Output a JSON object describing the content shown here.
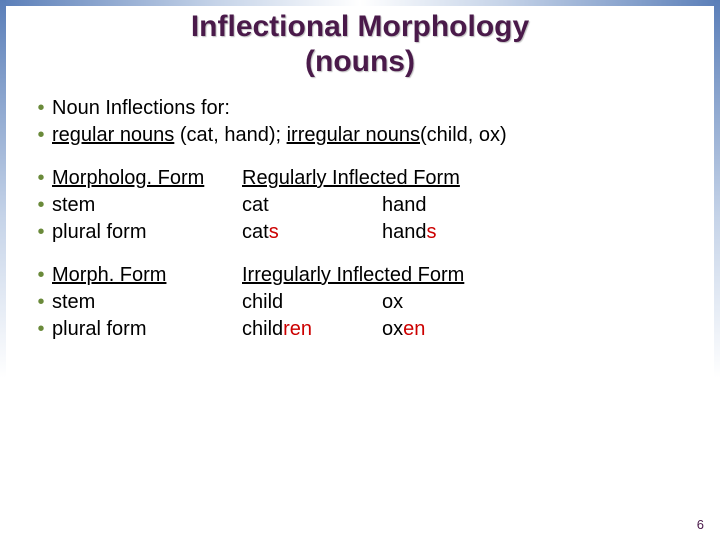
{
  "title": {
    "line1": "Inflectional Morphology",
    "line2": "(nouns)",
    "color": "#4a1a4a",
    "fontsize": 30
  },
  "bullet": {
    "glyph": "•",
    "color": "#6a8a3a",
    "fontsize": 20
  },
  "body": {
    "color": "#000000",
    "fontsize": 20
  },
  "suffix": {
    "color": "#cc0000"
  },
  "section1": {
    "line1": "Noun Inflections for:",
    "line2_a": "regular nouns",
    "line2_b": " (cat, hand);   ",
    "line2_c": "irregular nouns",
    "line2_d": "(child, ox)"
  },
  "section2": {
    "col_header": "Morpholog. Form",
    "inflected_header": "Regularly Inflected Form",
    "row1_label": "stem",
    "row1_v1": "cat",
    "row1_v2": "hand",
    "row2_label": "plural form",
    "row2_v1_stem": "cat",
    "row2_v1_suf": "s",
    "row2_v2_stem": "hand",
    "row2_v2_suf": "s"
  },
  "section3": {
    "col_header": "Morph. Form",
    "inflected_header": "Irregularly Inflected Form",
    "row1_label": "stem",
    "row1_v1": "child",
    "row1_v2": "ox",
    "row2_label": "plural form",
    "row2_v1_stem": "child",
    "row2_v1_suf": "ren",
    "row2_v2_stem": "ox",
    "row2_v2_suf": "en"
  },
  "page_number": {
    "value": "6",
    "color": "#4a1a4a",
    "fontsize": 13
  }
}
